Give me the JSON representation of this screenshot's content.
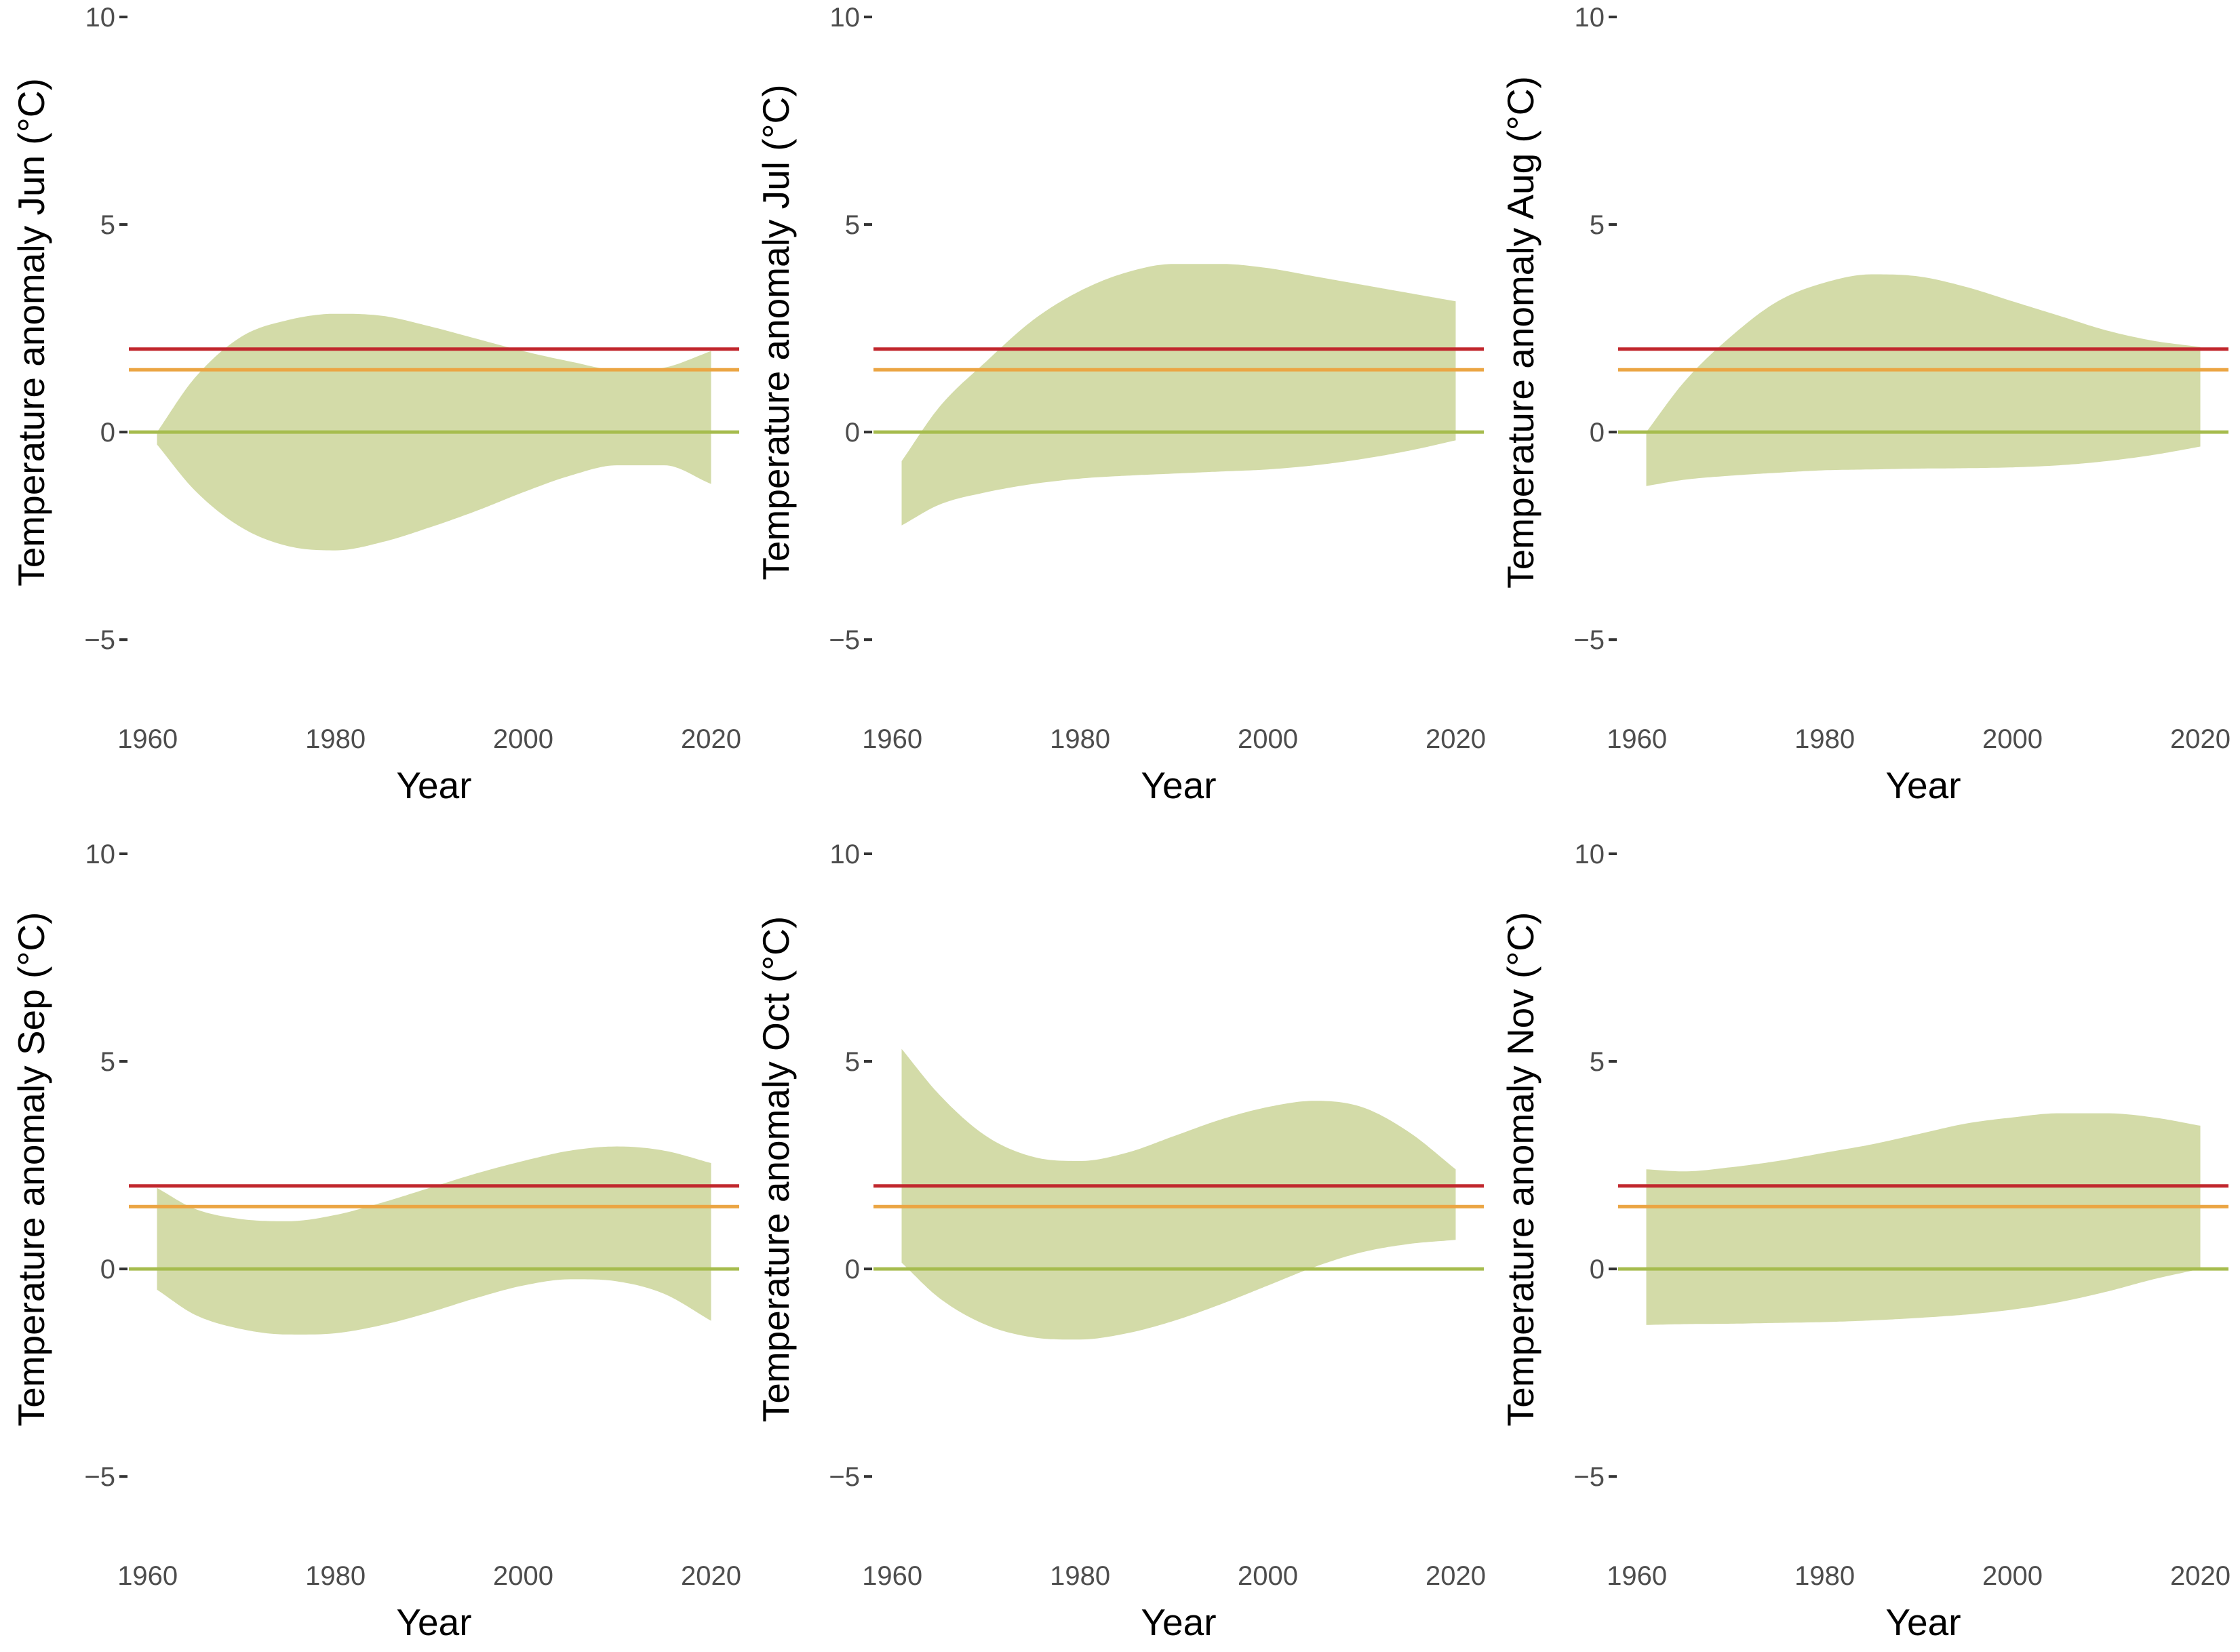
{
  "colors": {
    "band": "#d3dba8",
    "line_2c": "#c1272d",
    "line_1_5c": "#eba543",
    "line_0c": "#a6bc4e"
  },
  "chart_data": [
    {
      "type": "area",
      "xlabel": "Year",
      "ylabel": "Temperature anomaly Jun (°C)",
      "xlim": [
        1958,
        2023
      ],
      "ylim": [
        -6.5,
        10
      ],
      "xticks": [
        1960,
        1980,
        2000,
        2020
      ],
      "xtick_labels": [
        "1960",
        "1980",
        "2000",
        "2020"
      ],
      "yticks": [
        10,
        5,
        0,
        -5
      ],
      "ytick_labels": [
        "10",
        "5",
        "0",
        "−5"
      ],
      "reference_lines": [
        {
          "name": "2 °C",
          "value": 2.0,
          "color": "#c1272d"
        },
        {
          "name": "1.5 °C",
          "value": 1.5,
          "color": "#eba543"
        },
        {
          "name": "0 °C",
          "value": 0.0,
          "color": "#a6bc4e"
        }
      ],
      "band": {
        "x": [
          1961,
          1965,
          1970,
          1975,
          1980,
          1985,
          1990,
          1995,
          2000,
          2005,
          2010,
          2015,
          2020
        ],
        "upper": [
          0.0,
          1.3,
          2.3,
          2.7,
          2.85,
          2.8,
          2.55,
          2.25,
          1.95,
          1.7,
          1.5,
          1.55,
          1.95
        ],
        "lower": [
          -0.3,
          -1.4,
          -2.3,
          -2.75,
          -2.85,
          -2.65,
          -2.3,
          -1.9,
          -1.45,
          -1.05,
          -0.8,
          -0.8,
          -1.25
        ]
      }
    },
    {
      "type": "area",
      "xlabel": "Year",
      "ylabel": "Temperature anomaly Jul (°C)",
      "xlim": [
        1958,
        2023
      ],
      "ylim": [
        -6.5,
        10
      ],
      "xticks": [
        1960,
        1980,
        2000,
        2020
      ],
      "xtick_labels": [
        "1960",
        "1980",
        "2000",
        "2020"
      ],
      "yticks": [
        10,
        5,
        0,
        -5
      ],
      "ytick_labels": [
        "10",
        "5",
        "0",
        "−5"
      ],
      "reference_lines": [
        {
          "name": "2 °C",
          "value": 2.0,
          "color": "#c1272d"
        },
        {
          "name": "1.5 °C",
          "value": 1.5,
          "color": "#eba543"
        },
        {
          "name": "0 °C",
          "value": 0.0,
          "color": "#a6bc4e"
        }
      ],
      "band": {
        "x": [
          1961,
          1965,
          1970,
          1975,
          1980,
          1985,
          1990,
          1995,
          2000,
          2005,
          2010,
          2015,
          2020
        ],
        "upper": [
          -0.7,
          0.6,
          1.7,
          2.7,
          3.4,
          3.85,
          4.05,
          4.05,
          3.95,
          3.75,
          3.55,
          3.35,
          3.15
        ],
        "lower": [
          -2.25,
          -1.75,
          -1.45,
          -1.25,
          -1.12,
          -1.05,
          -1.0,
          -0.95,
          -0.9,
          -0.8,
          -0.65,
          -0.45,
          -0.2
        ]
      }
    },
    {
      "type": "area",
      "xlabel": "Year",
      "ylabel": "Temperature anomaly Aug (°C)",
      "xlim": [
        1958,
        2023
      ],
      "ylim": [
        -6.5,
        10
      ],
      "xticks": [
        1960,
        1980,
        2000,
        2020
      ],
      "xtick_labels": [
        "1960",
        "1980",
        "2000",
        "2020"
      ],
      "yticks": [
        10,
        5,
        0,
        -5
      ],
      "ytick_labels": [
        "10",
        "5",
        "0",
        "−5"
      ],
      "reference_lines": [
        {
          "name": "2 °C",
          "value": 2.0,
          "color": "#c1272d"
        },
        {
          "name": "1.5 °C",
          "value": 1.5,
          "color": "#eba543"
        },
        {
          "name": "0 °C",
          "value": 0.0,
          "color": "#a6bc4e"
        }
      ],
      "band": {
        "x": [
          1961,
          1965,
          1970,
          1975,
          1980,
          1985,
          1990,
          1995,
          2000,
          2005,
          2010,
          2015,
          2020
        ],
        "upper": [
          0.0,
          1.2,
          2.3,
          3.15,
          3.6,
          3.8,
          3.75,
          3.5,
          3.15,
          2.8,
          2.45,
          2.2,
          2.05
        ],
        "lower": [
          -1.3,
          -1.15,
          -1.05,
          -0.98,
          -0.92,
          -0.9,
          -0.88,
          -0.87,
          -0.85,
          -0.8,
          -0.7,
          -0.55,
          -0.35
        ]
      }
    },
    {
      "type": "area",
      "xlabel": "Year",
      "ylabel": "Temperature anomaly Sep (°C)",
      "xlim": [
        1958,
        2023
      ],
      "ylim": [
        -6.5,
        10
      ],
      "xticks": [
        1960,
        1980,
        2000,
        2020
      ],
      "xtick_labels": [
        "1960",
        "1980",
        "2000",
        "2020"
      ],
      "yticks": [
        10,
        5,
        0,
        -5
      ],
      "ytick_labels": [
        "10",
        "5",
        "0",
        "−5"
      ],
      "reference_lines": [
        {
          "name": "2 °C",
          "value": 2.0,
          "color": "#c1272d"
        },
        {
          "name": "1.5 °C",
          "value": 1.5,
          "color": "#eba543"
        },
        {
          "name": "0 °C",
          "value": 0.0,
          "color": "#a6bc4e"
        }
      ],
      "band": {
        "x": [
          1961,
          1965,
          1970,
          1975,
          1980,
          1985,
          1990,
          1995,
          2000,
          2005,
          2010,
          2015,
          2020
        ],
        "upper": [
          1.95,
          1.45,
          1.2,
          1.15,
          1.3,
          1.6,
          1.95,
          2.3,
          2.6,
          2.85,
          2.95,
          2.85,
          2.55
        ],
        "lower": [
          -0.5,
          -1.1,
          -1.45,
          -1.58,
          -1.55,
          -1.35,
          -1.05,
          -0.7,
          -0.4,
          -0.25,
          -0.3,
          -0.6,
          -1.25
        ]
      }
    },
    {
      "type": "area",
      "xlabel": "Year",
      "ylabel": "Temperature anomaly Oct (°C)",
      "xlim": [
        1958,
        2023
      ],
      "ylim": [
        -6.5,
        10
      ],
      "xticks": [
        1960,
        1980,
        2000,
        2020
      ],
      "xtick_labels": [
        "1960",
        "1980",
        "2000",
        "2020"
      ],
      "yticks": [
        10,
        5,
        0,
        -5
      ],
      "ytick_labels": [
        "10",
        "5",
        "0",
        "−5"
      ],
      "reference_lines": [
        {
          "name": "2 °C",
          "value": 2.0,
          "color": "#c1272d"
        },
        {
          "name": "1.5 °C",
          "value": 1.5,
          "color": "#eba543"
        },
        {
          "name": "0 °C",
          "value": 0.0,
          "color": "#a6bc4e"
        }
      ],
      "band": {
        "x": [
          1961,
          1965,
          1970,
          1975,
          1980,
          1985,
          1990,
          1995,
          2000,
          2005,
          2010,
          2015,
          2020
        ],
        "upper": [
          5.3,
          4.2,
          3.2,
          2.7,
          2.6,
          2.8,
          3.2,
          3.6,
          3.9,
          4.05,
          3.9,
          3.3,
          2.4
        ],
        "lower": [
          0.15,
          -0.7,
          -1.35,
          -1.65,
          -1.7,
          -1.55,
          -1.25,
          -0.85,
          -0.4,
          0.05,
          0.4,
          0.6,
          0.7
        ]
      }
    },
    {
      "type": "area",
      "xlabel": "Year",
      "ylabel": "Temperature anomaly Nov (°C)",
      "xlim": [
        1958,
        2023
      ],
      "ylim": [
        -6.5,
        10
      ],
      "xticks": [
        1960,
        1980,
        2000,
        2020
      ],
      "xtick_labels": [
        "1960",
        "1980",
        "2000",
        "2020"
      ],
      "yticks": [
        10,
        5,
        0,
        -5
      ],
      "ytick_labels": [
        "10",
        "5",
        "0",
        "−5"
      ],
      "reference_lines": [
        {
          "name": "2 °C",
          "value": 2.0,
          "color": "#c1272d"
        },
        {
          "name": "1.5 °C",
          "value": 1.5,
          "color": "#eba543"
        },
        {
          "name": "0 °C",
          "value": 0.0,
          "color": "#a6bc4e"
        }
      ],
      "band": {
        "x": [
          1961,
          1965,
          1970,
          1975,
          1980,
          1985,
          1990,
          1995,
          2000,
          2005,
          2010,
          2015,
          2020
        ],
        "upper": [
          2.4,
          2.35,
          2.45,
          2.6,
          2.8,
          3.0,
          3.25,
          3.5,
          3.65,
          3.75,
          3.75,
          3.65,
          3.45
        ],
        "lower": [
          -1.35,
          -1.33,
          -1.32,
          -1.3,
          -1.28,
          -1.24,
          -1.18,
          -1.1,
          -0.98,
          -0.8,
          -0.55,
          -0.25,
          0.0
        ]
      }
    }
  ]
}
